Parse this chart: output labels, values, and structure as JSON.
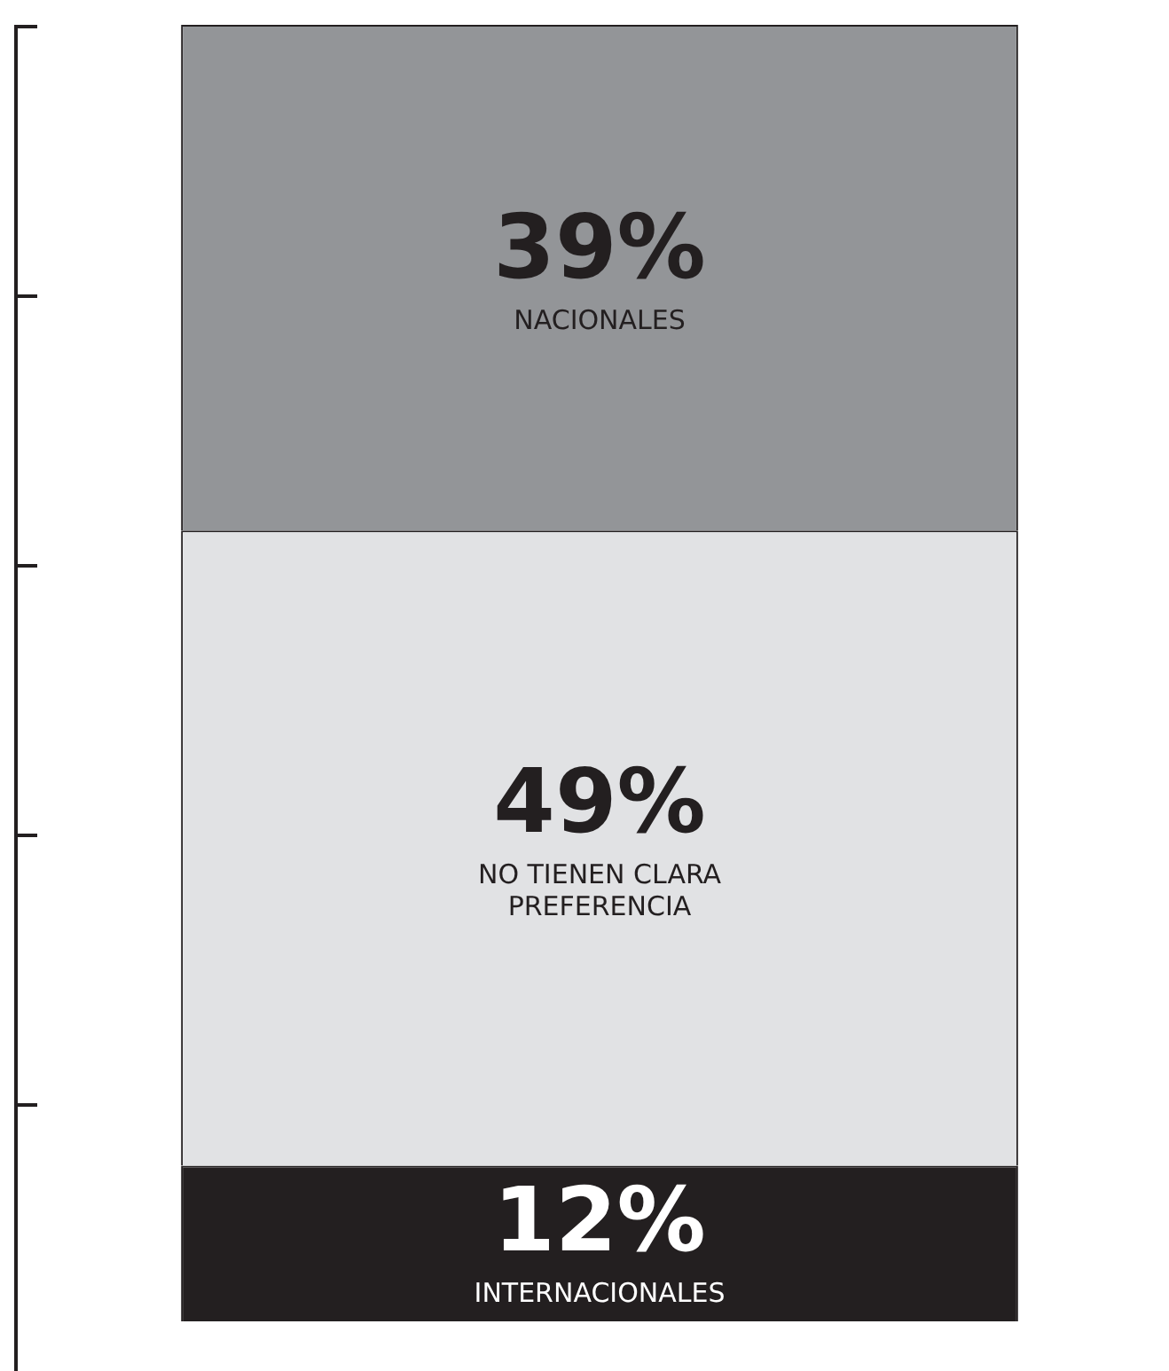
{
  "chart_data": {
    "type": "bar",
    "stacked": true,
    "categories": [
      null
    ],
    "series": [
      {
        "name": "INTERNACIONALES",
        "color": "#231f20",
        "values": [
          12
        ],
        "value_labels": [
          "12%"
        ]
      },
      {
        "name": "NO TIENEN CLARA PREFERENCIA",
        "color": "#e1e2e4",
        "values": [
          49
        ],
        "value_labels": [
          "49%"
        ]
      },
      {
        "name": "NACIONALES",
        "color": "#939598",
        "values": [
          39
        ],
        "value_labels": [
          "39%"
        ]
      }
    ]
  }
}
